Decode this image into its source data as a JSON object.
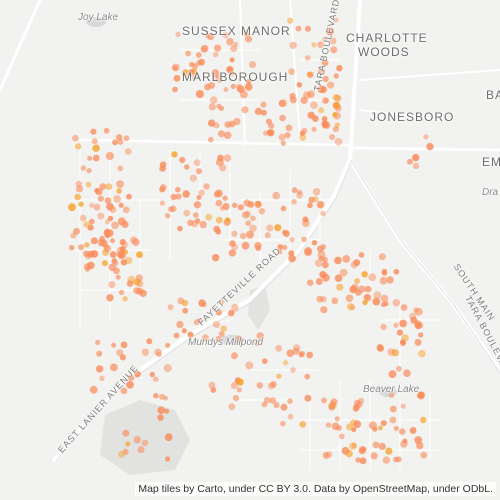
{
  "map": {
    "attribution": "Map tiles by Carto, under CC BY 3.0. Data by OpenStreetMap, under ODbL.",
    "point_color": "#f98b5a",
    "highlight_color": "#f7a12a",
    "labels": {
      "joy_lake": "Joy Lake",
      "sussex_manor": "SUSSEX MANOR",
      "charlotte": "CHARLOTTE",
      "woods": "WOODS",
      "marlborough": "MARLBOROUGH",
      "jonesboro": "JONESBORO",
      "ba": "BA",
      "em": "EM",
      "dra": "Dra",
      "tara_blvd_north": "TARA BOULEVARD",
      "fayetteville_road": "FAYETTEVILLE ROAD",
      "mundys_millpond": "Mundys Millpond",
      "east_lanier_avenue": "EAST LANIER AVENUE",
      "south_main": "SOUTH MAIN",
      "tara_blvd_south": "TARA BOULEVARD",
      "beaver_lake": "Beaver Lake"
    }
  }
}
